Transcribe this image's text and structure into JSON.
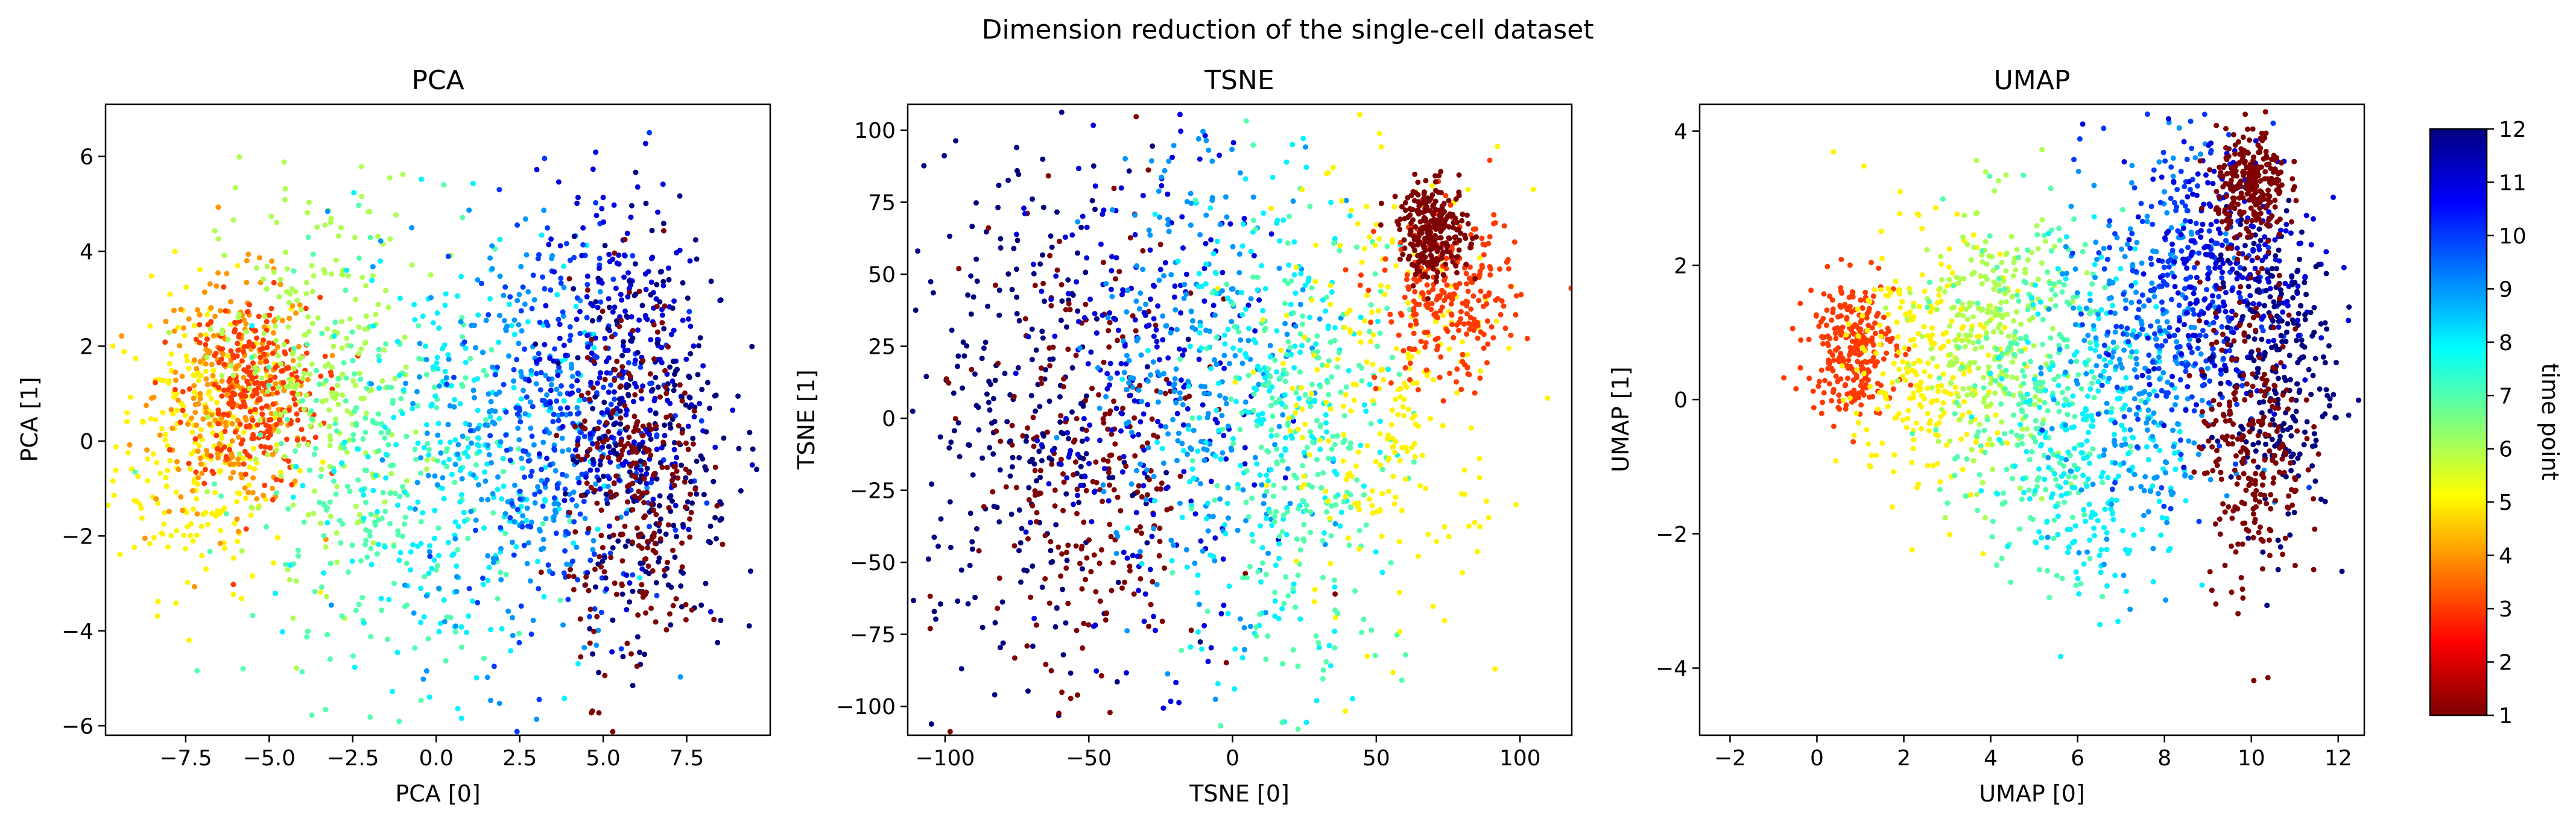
{
  "figure": {
    "title": "Dimension reduction of the single-cell dataset"
  },
  "colorbar": {
    "label": "time point",
    "range": [
      1,
      12
    ],
    "ticks": [
      "1",
      "2",
      "3",
      "4",
      "5",
      "6",
      "7",
      "8",
      "9",
      "10",
      "11",
      "12"
    ],
    "colormap": "jet",
    "colors": [
      "#7f0000",
      "#ff0000",
      "#ff7f00",
      "#ffff00",
      "#7fff7f",
      "#00ffff",
      "#007fff",
      "#0000ff",
      "#00007f"
    ]
  },
  "chart_data": [
    {
      "type": "scatter",
      "title": "PCA",
      "xlabel": "PCA [0]",
      "ylabel": "PCA [1]",
      "xlim": [
        -9.9,
        10.0
      ],
      "ylim": [
        -6.2,
        7.1
      ],
      "xticks": [
        -7.5,
        -5.0,
        -2.5,
        0.0,
        2.5,
        5.0,
        7.5
      ],
      "xtick_labels": [
        "−7.5",
        "−5.0",
        "−2.5",
        "0.0",
        "2.5",
        "5.0",
        "7.5"
      ],
      "yticks": [
        -6,
        -4,
        -2,
        0,
        2,
        4,
        6
      ],
      "ytick_labels": [
        "−6",
        "−4",
        "−2",
        "0",
        "2",
        "4",
        "6"
      ],
      "color_by": "time point",
      "clusters": [
        {
          "time_point": 5,
          "x": -7.0,
          "y": 0.0,
          "sx": 1.3,
          "sy": 1.6
        },
        {
          "time_point": 4,
          "x": -6.0,
          "y": 1.0,
          "sx": 1.2,
          "sy": 1.2
        },
        {
          "time_point": 3,
          "x": -5.5,
          "y": 1.0,
          "sx": 1.0,
          "sy": 1.0
        },
        {
          "time_point": 6,
          "x": -3.5,
          "y": 1.5,
          "sx": 1.5,
          "sy": 2.0
        },
        {
          "time_point": 7,
          "x": -1.5,
          "y": -1.0,
          "sx": 2.0,
          "sy": 2.2
        },
        {
          "time_point": 8,
          "x": 0.5,
          "y": -0.5,
          "sx": 2.0,
          "sy": 2.3
        },
        {
          "time_point": 9,
          "x": 2.5,
          "y": 0.0,
          "sx": 1.7,
          "sy": 2.3
        },
        {
          "time_point": 10,
          "x": 4.0,
          "y": 0.5,
          "sx": 1.5,
          "sy": 2.2
        },
        {
          "time_point": 11,
          "x": 5.5,
          "y": 1.5,
          "sx": 1.2,
          "sy": 2.0
        },
        {
          "time_point": 12,
          "x": 6.5,
          "y": 0.0,
          "sx": 1.2,
          "sy": 2.3
        },
        {
          "time_point": 1,
          "x": 6.0,
          "y": -1.0,
          "sx": 1.0,
          "sy": 2.0
        }
      ]
    },
    {
      "type": "scatter",
      "title": "TSNE",
      "xlabel": "TSNE [0]",
      "ylabel": "TSNE [1]",
      "xlim": [
        -113,
        118
      ],
      "ylim": [
        -110,
        109
      ],
      "xticks": [
        -100,
        -50,
        0,
        50,
        100
      ],
      "xtick_labels": [
        "−100",
        "−50",
        "0",
        "50",
        "100"
      ],
      "yticks": [
        -100,
        -75,
        -50,
        -25,
        0,
        25,
        50,
        75,
        100
      ],
      "ytick_labels": [
        "−100",
        "−75",
        "−50",
        "−25",
        "0",
        "25",
        "50",
        "75",
        "100"
      ],
      "color_by": "time point",
      "clusters": [
        {
          "time_point": 12,
          "x": -75,
          "y": 0,
          "sx": 20,
          "sy": 45
        },
        {
          "time_point": 1,
          "x": -50,
          "y": -20,
          "sx": 20,
          "sy": 45
        },
        {
          "time_point": 11,
          "x": -30,
          "y": 10,
          "sx": 20,
          "sy": 45
        },
        {
          "time_point": 9,
          "x": -10,
          "y": 20,
          "sx": 20,
          "sy": 40
        },
        {
          "time_point": 8,
          "x": 10,
          "y": 0,
          "sx": 20,
          "sy": 45
        },
        {
          "time_point": 7,
          "x": 25,
          "y": -10,
          "sx": 18,
          "sy": 40
        },
        {
          "time_point": 5,
          "x": 55,
          "y": 10,
          "sx": 20,
          "sy": 40
        },
        {
          "time_point": 3,
          "x": 75,
          "y": 40,
          "sx": 12,
          "sy": 15
        },
        {
          "time_point": 1,
          "x": 70,
          "y": 65,
          "sx": 6,
          "sy": 8
        }
      ]
    },
    {
      "type": "scatter",
      "title": "UMAP",
      "xlabel": "UMAP [0]",
      "ylabel": "UMAP [1]",
      "xlim": [
        -2.7,
        12.6
      ],
      "ylim": [
        -5.0,
        4.4
      ],
      "xticks": [
        -2,
        0,
        2,
        4,
        6,
        8,
        10,
        12
      ],
      "xtick_labels": [
        "−2",
        "0",
        "2",
        "4",
        "6",
        "8",
        "10",
        "12"
      ],
      "yticks": [
        -4,
        -2,
        0,
        2,
        4
      ],
      "ytick_labels": [
        "−4",
        "−2",
        "0",
        "2",
        "4"
      ],
      "color_by": "time point",
      "clusters": [
        {
          "time_point": 3,
          "x": 0.8,
          "y": 0.8,
          "sx": 0.5,
          "sy": 0.5
        },
        {
          "time_point": 5,
          "x": 2.5,
          "y": 0.5,
          "sx": 0.9,
          "sy": 1.0
        },
        {
          "time_point": 6,
          "x": 4.0,
          "y": 1.0,
          "sx": 0.8,
          "sy": 1.0
        },
        {
          "time_point": 7,
          "x": 5.0,
          "y": 0.0,
          "sx": 1.0,
          "sy": 1.3
        },
        {
          "time_point": 8,
          "x": 6.5,
          "y": -0.5,
          "sx": 1.0,
          "sy": 1.3
        },
        {
          "time_point": 9,
          "x": 7.5,
          "y": 0.5,
          "sx": 1.0,
          "sy": 1.5
        },
        {
          "time_point": 10,
          "x": 8.5,
          "y": 1.5,
          "sx": 1.0,
          "sy": 1.3
        },
        {
          "time_point": 11,
          "x": 9.5,
          "y": 2.0,
          "sx": 1.0,
          "sy": 1.0
        },
        {
          "time_point": 12,
          "x": 10.5,
          "y": 0.5,
          "sx": 0.7,
          "sy": 1.2
        },
        {
          "time_point": 1,
          "x": 10.0,
          "y": -0.5,
          "sx": 0.6,
          "sy": 1.2
        },
        {
          "time_point": 1,
          "x": 10.0,
          "y": 3.2,
          "sx": 0.4,
          "sy": 0.4
        }
      ]
    }
  ]
}
